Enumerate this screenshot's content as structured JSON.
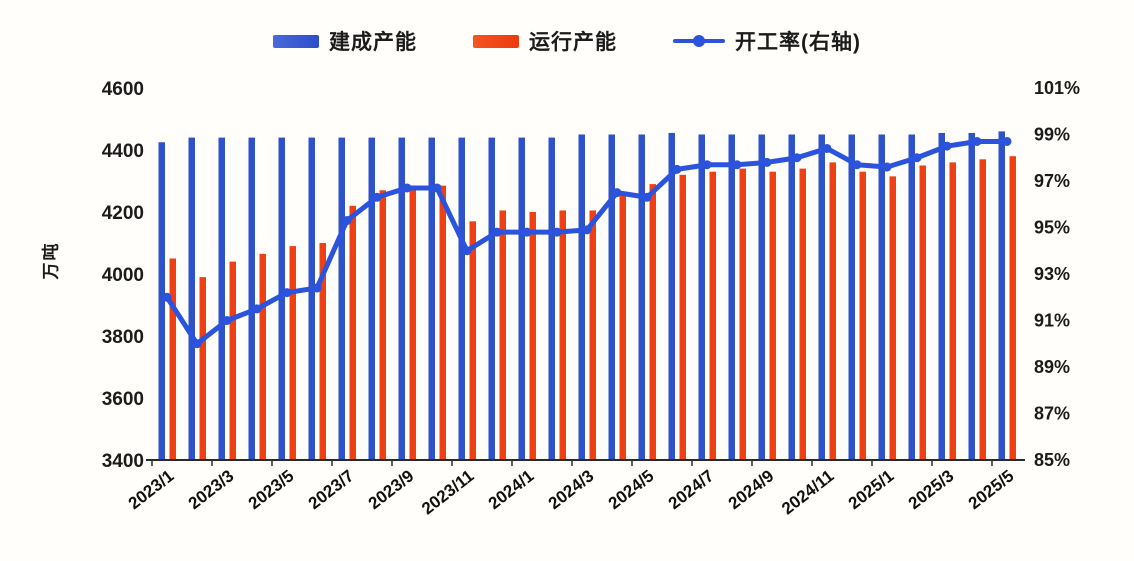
{
  "chart_data": {
    "type": "bar",
    "subtype": "combo-bar-line",
    "title": "",
    "legend_position": "top",
    "grid": false,
    "x": [
      "2023/1",
      "2023/2",
      "2023/3",
      "2023/4",
      "2023/5",
      "2023/6",
      "2023/7",
      "2023/8",
      "2023/9",
      "2023/10",
      "2023/11",
      "2023/12",
      "2024/1",
      "2024/2",
      "2024/3",
      "2024/4",
      "2024/5",
      "2024/6",
      "2024/7",
      "2024/8",
      "2024/9",
      "2024/10",
      "2024/11",
      "2024/12",
      "2025/1",
      "2025/2",
      "2025/3",
      "2025/4",
      "2025/5"
    ],
    "x_tick_labels_shown": [
      "2023/1",
      "2023/3",
      "2023/5",
      "2023/7",
      "2023/9",
      "2023/11",
      "2024/1",
      "2024/3",
      "2024/5",
      "2024/7",
      "2024/9",
      "2024/11",
      "2025/1",
      "2025/3",
      "2025/5"
    ],
    "series": [
      {
        "name": "建成产能",
        "kind": "bar",
        "axis": "left",
        "color": "#2e52cc",
        "values": [
          4425,
          4440,
          4440,
          4440,
          4440,
          4440,
          4440,
          4440,
          4440,
          4440,
          4440,
          4440,
          4440,
          4440,
          4450,
          4450,
          4450,
          4455,
          4450,
          4450,
          4450,
          4450,
          4450,
          4450,
          4450,
          4450,
          4455,
          4455,
          4460
        ]
      },
      {
        "name": "运行产能",
        "kind": "bar",
        "axis": "left",
        "color": "#ee4013",
        "values": [
          4050,
          3990,
          4040,
          4065,
          4090,
          4100,
          4220,
          4270,
          4280,
          4285,
          4170,
          4205,
          4200,
          4205,
          4205,
          4260,
          4290,
          4320,
          4330,
          4340,
          4330,
          4340,
          4360,
          4330,
          4315,
          4350,
          4360,
          4370,
          4380
        ]
      },
      {
        "name": "开工率(右轴)",
        "kind": "line",
        "axis": "right",
        "color": "#2b53dd",
        "values_percent": [
          92.0,
          90.0,
          91.0,
          91.5,
          92.2,
          92.4,
          95.3,
          96.3,
          96.7,
          96.7,
          94.0,
          94.8,
          94.8,
          94.8,
          94.9,
          96.5,
          96.3,
          97.5,
          97.7,
          97.7,
          97.8,
          98.0,
          98.4,
          97.7,
          97.6,
          98.0,
          98.5,
          98.7,
          98.7
        ]
      }
    ],
    "left_axis": {
      "label": "万吨",
      "min": 3400,
      "max": 4600,
      "step": 200,
      "tick_labels": [
        "3400",
        "3600",
        "3800",
        "4000",
        "4200",
        "4400",
        "4600"
      ]
    },
    "right_axis": {
      "min": 85,
      "max": 101,
      "step": 2,
      "tick_labels": [
        "85%",
        "87%",
        "89%",
        "91%",
        "93%",
        "95%",
        "97%",
        "99%",
        "101%"
      ]
    }
  }
}
